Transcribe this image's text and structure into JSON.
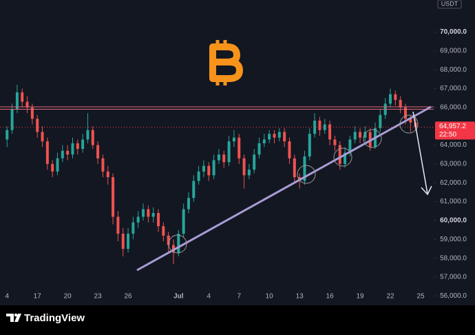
{
  "chart_data": {
    "type": "candlestick",
    "currency": "USDT",
    "brand": "TradingView",
    "up_color": "#26a69a",
    "down_color": "#ef5350",
    "last_price": {
      "value": 64957.2,
      "label": "64,957.2"
    },
    "countdown": "22:50",
    "xlim": [
      -0.7,
      42.3
    ],
    "ylim": [
      55500,
      71700
    ],
    "xticks": [
      {
        "value": 0,
        "label": "4"
      },
      {
        "value": 3,
        "label": "17"
      },
      {
        "value": 6,
        "label": "20"
      },
      {
        "value": 9,
        "label": "23"
      },
      {
        "value": 12,
        "label": "26"
      },
      {
        "value": 17,
        "label": "Jul"
      },
      {
        "value": 20,
        "label": "4"
      },
      {
        "value": 23,
        "label": "7"
      },
      {
        "value": 26,
        "label": "10"
      },
      {
        "value": 29,
        "label": "13"
      },
      {
        "value": 32,
        "label": "16"
      },
      {
        "value": 35,
        "label": "19"
      },
      {
        "value": 38,
        "label": "22"
      },
      {
        "value": 41,
        "label": "25"
      }
    ],
    "yticks": [
      {
        "value": 56000,
        "label": "56,000.0"
      },
      {
        "value": 57000,
        "label": "57,000.0"
      },
      {
        "value": 58000,
        "label": "58,000.0"
      },
      {
        "value": 59000,
        "label": "59,000.0"
      },
      {
        "value": 60000,
        "label": "60,000.0"
      },
      {
        "value": 61000,
        "label": "61,000.0"
      },
      {
        "value": 62000,
        "label": "62,000.0"
      },
      {
        "value": 63000,
        "label": "63,000.0"
      },
      {
        "value": 64000,
        "label": "64,000.0"
      },
      {
        "value": 66000,
        "label": "66,000.0"
      },
      {
        "value": 67000,
        "label": "67,000.0"
      },
      {
        "value": 68000,
        "label": "68,000.0"
      },
      {
        "value": 69000,
        "label": "69,000.0"
      },
      {
        "value": 70000,
        "label": "70,000.0"
      }
    ],
    "x": [
      0,
      0.5,
      1,
      1.5,
      2,
      2.5,
      3,
      3.5,
      4,
      4.5,
      5,
      5.5,
      6,
      6.5,
      7,
      7.5,
      8,
      8.5,
      9,
      9.5,
      10,
      10.5,
      11,
      11.5,
      12,
      12.5,
      13,
      13.5,
      14,
      14.5,
      15,
      15.5,
      16,
      16.5,
      17,
      17.5,
      18,
      18.5,
      19,
      19.5,
      20,
      20.5,
      21,
      21.5,
      22,
      22.5,
      23,
      23.5,
      24,
      24.5,
      25,
      25.5,
      26,
      26.5,
      27,
      27.5,
      28,
      28.5,
      29,
      29.5,
      30,
      30.5,
      31,
      31.5,
      32,
      32.5,
      33,
      33.5,
      34,
      34.5,
      35,
      35.5,
      36,
      36.5,
      37,
      37.5,
      38,
      38.5,
      39,
      39.5,
      40,
      40.5
    ],
    "candles": [
      [
        64300,
        65000,
        63900,
        64800
      ],
      [
        64800,
        66200,
        64600,
        65900
      ],
      [
        65900,
        67200,
        65700,
        66800
      ],
      [
        66800,
        67000,
        66000,
        66300
      ],
      [
        66300,
        66600,
        65700,
        66000
      ],
      [
        66000,
        66200,
        65100,
        65400
      ],
      [
        65400,
        65600,
        64400,
        64700
      ],
      [
        64700,
        65000,
        63900,
        64200
      ],
      [
        64200,
        64400,
        62700,
        63000
      ],
      [
        63000,
        63200,
        62300,
        62600
      ],
      [
        62600,
        63600,
        62400,
        63300
      ],
      [
        63300,
        64000,
        63100,
        63700
      ],
      [
        63700,
        64000,
        63200,
        63500
      ],
      [
        63500,
        64400,
        63300,
        64100
      ],
      [
        64100,
        64300,
        63500,
        63800
      ],
      [
        63800,
        64600,
        63600,
        64300
      ],
      [
        64300,
        65700,
        64100,
        64800
      ],
      [
        64800,
        65000,
        63800,
        64000
      ],
      [
        64000,
        64200,
        63000,
        63300
      ],
      [
        63300,
        63500,
        62300,
        62600
      ],
      [
        62600,
        62900,
        61900,
        62300
      ],
      [
        62300,
        62500,
        59800,
        60200
      ],
      [
        60200,
        60500,
        58900,
        59300
      ],
      [
        59300,
        59600,
        58100,
        58500
      ],
      [
        58500,
        59600,
        58300,
        59300
      ],
      [
        59300,
        60200,
        59000,
        59900
      ],
      [
        59900,
        60500,
        59600,
        60200
      ],
      [
        60200,
        60900,
        60000,
        60600
      ],
      [
        60600,
        60800,
        59900,
        60200
      ],
      [
        60200,
        60700,
        59900,
        60400
      ],
      [
        60400,
        60600,
        59400,
        59700
      ],
      [
        59700,
        59900,
        58900,
        59200
      ],
      [
        59200,
        59400,
        58300,
        58700
      ],
      [
        58700,
        59000,
        57700,
        58300
      ],
      [
        58300,
        59500,
        58100,
        59300
      ],
      [
        59300,
        60900,
        59100,
        60600
      ],
      [
        60600,
        61500,
        60400,
        61200
      ],
      [
        61200,
        62400,
        61000,
        62100
      ],
      [
        62100,
        62900,
        61900,
        62600
      ],
      [
        62600,
        63200,
        62300,
        62900
      ],
      [
        62900,
        63100,
        62100,
        62400
      ],
      [
        62400,
        63500,
        62200,
        63200
      ],
      [
        63200,
        63800,
        63000,
        63500
      ],
      [
        63500,
        63700,
        62800,
        63100
      ],
      [
        63100,
        64500,
        62900,
        64200
      ],
      [
        64200,
        64800,
        63900,
        64400
      ],
      [
        64400,
        64600,
        63000,
        63300
      ],
      [
        63300,
        63500,
        61700,
        62400
      ],
      [
        62400,
        63000,
        62200,
        62700
      ],
      [
        62700,
        63800,
        62500,
        63500
      ],
      [
        63500,
        64400,
        63300,
        64100
      ],
      [
        64100,
        64600,
        63900,
        64300
      ],
      [
        64300,
        64800,
        64100,
        64600
      ],
      [
        64600,
        64800,
        64100,
        64400
      ],
      [
        64400,
        64900,
        64200,
        64700
      ],
      [
        64700,
        64900,
        63900,
        64200
      ],
      [
        64200,
        64400,
        63000,
        63300
      ],
      [
        63300,
        63500,
        62000,
        62300
      ],
      [
        62300,
        62500,
        61700,
        62100
      ],
      [
        62100,
        63700,
        61900,
        63400
      ],
      [
        63400,
        64900,
        63200,
        64600
      ],
      [
        64600,
        65700,
        64400,
        65300
      ],
      [
        65300,
        65500,
        64500,
        64800
      ],
      [
        64800,
        65400,
        64600,
        65100
      ],
      [
        65100,
        65300,
        64000,
        64300
      ],
      [
        64300,
        64500,
        63700,
        64000
      ],
      [
        64000,
        64200,
        62700,
        63000
      ],
      [
        63000,
        63900,
        62800,
        63600
      ],
      [
        63600,
        64500,
        63400,
        64300
      ],
      [
        64300,
        65000,
        64100,
        64700
      ],
      [
        64700,
        64900,
        64100,
        64400
      ],
      [
        64400,
        65000,
        64200,
        64700
      ],
      [
        64700,
        64900,
        63700,
        63900
      ],
      [
        63900,
        65200,
        63800,
        64900
      ],
      [
        64900,
        65900,
        64700,
        65600
      ],
      [
        65600,
        66500,
        65400,
        66200
      ],
      [
        66200,
        67000,
        66000,
        66700
      ],
      [
        66700,
        66900,
        66100,
        66400
      ],
      [
        66400,
        66600,
        65700,
        66000
      ],
      [
        66000,
        66200,
        65100,
        65400
      ],
      [
        65400,
        65600,
        64700,
        65200
      ],
      [
        65200,
        65500,
        64800,
        64957.2
      ]
    ]
  }
}
